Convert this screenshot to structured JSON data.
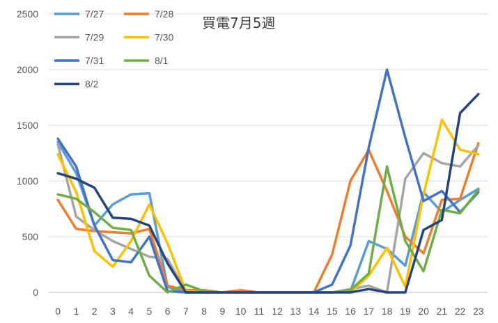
{
  "chart_data": {
    "type": "line",
    "title": "買電7月5週",
    "xlabel": "",
    "ylabel": "",
    "ylim": [
      0,
      2500
    ],
    "yticks": [
      0,
      500,
      1000,
      1500,
      2000,
      2500
    ],
    "grid": "horizontal",
    "legend_position": "top-left",
    "categories": [
      "0",
      "1",
      "2",
      "3",
      "4",
      "5",
      "6",
      "7",
      "8",
      "9",
      "10",
      "11",
      "12",
      "13",
      "14",
      "15",
      "16",
      "17",
      "18",
      "19",
      "20",
      "21",
      "22",
      "23"
    ],
    "series": [
      {
        "name": "7/27",
        "color": "#5B9BD5",
        "values": [
          1350,
          1070,
          600,
          790,
          880,
          890,
          50,
          0,
          0,
          0,
          0,
          0,
          0,
          0,
          0,
          0,
          10,
          460,
          390,
          240,
          900,
          720,
          830,
          930
        ]
      },
      {
        "name": "7/28",
        "color": "#ED7D31",
        "values": [
          830,
          570,
          550,
          540,
          530,
          570,
          60,
          20,
          20,
          0,
          20,
          0,
          0,
          0,
          0,
          340,
          1000,
          1280,
          910,
          500,
          350,
          830,
          840,
          1340
        ]
      },
      {
        "name": "7/29",
        "color": "#A5A5A5",
        "values": [
          1330,
          680,
          560,
          460,
          390,
          320,
          300,
          10,
          0,
          0,
          0,
          0,
          0,
          0,
          0,
          0,
          30,
          60,
          0,
          1020,
          1250,
          1160,
          1130,
          1320
        ]
      },
      {
        "name": "7/30",
        "color": "#FFC000",
        "values": [
          1240,
          900,
          370,
          230,
          460,
          790,
          440,
          10,
          0,
          0,
          0,
          0,
          0,
          0,
          0,
          0,
          0,
          150,
          400,
          50,
          880,
          1550,
          1280,
          1240
        ]
      },
      {
        "name": "7/31",
        "color": "#4472C4",
        "values": [
          1380,
          1130,
          600,
          290,
          270,
          500,
          10,
          0,
          0,
          0,
          0,
          0,
          0,
          0,
          0,
          70,
          420,
          1300,
          2000,
          1390,
          820,
          910,
          720,
          900
        ]
      },
      {
        "name": "8/1",
        "color": "#70AD47",
        "values": [
          880,
          840,
          720,
          580,
          560,
          150,
          0,
          70,
          10,
          0,
          0,
          0,
          0,
          0,
          0,
          0,
          20,
          170,
          1130,
          460,
          190,
          740,
          710,
          920
        ]
      },
      {
        "name": "8/2",
        "color": "#264478",
        "values": [
          1070,
          1020,
          940,
          670,
          660,
          600,
          260,
          0,
          0,
          0,
          0,
          0,
          0,
          0,
          0,
          0,
          0,
          30,
          0,
          0,
          560,
          650,
          1610,
          1780
        ]
      }
    ]
  }
}
